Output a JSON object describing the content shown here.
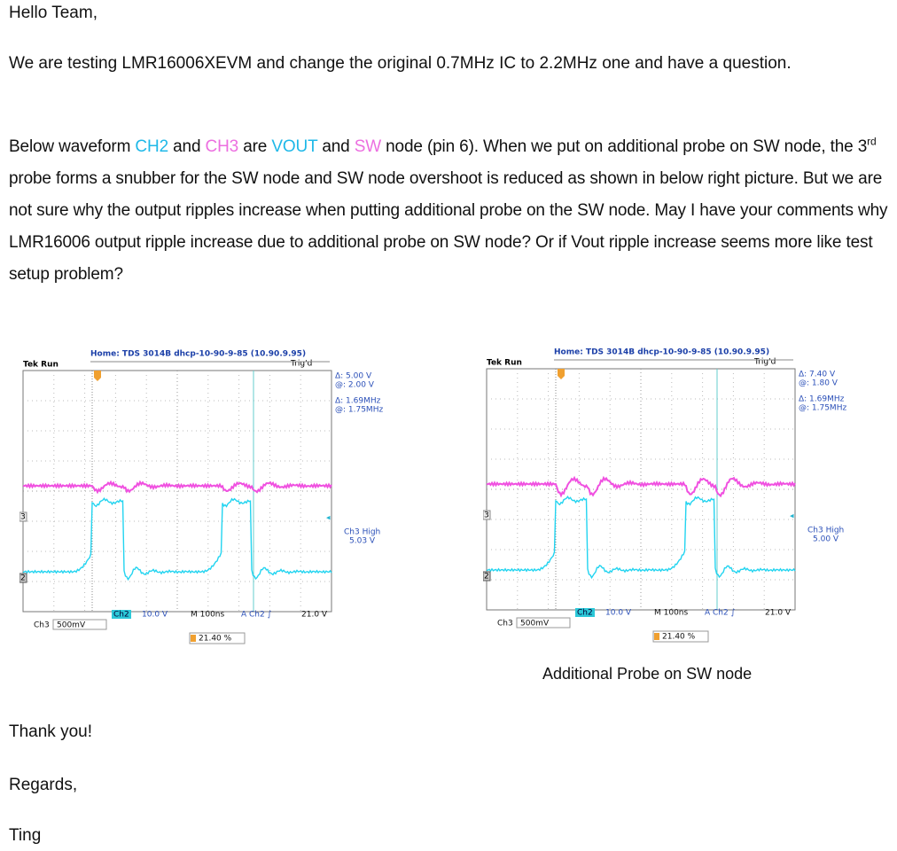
{
  "document": {
    "greeting": "Hello Team,",
    "paragraph1": "We are testing LMR16006XEVM and change the original 0.7MHz IC to 2.2MHz one and have a question.",
    "paragraph2": [
      {
        "text": "Below waveform "
      },
      {
        "text": "CH2",
        "color": "#1fb8e8"
      },
      {
        "text": " and "
      },
      {
        "text": "CH3",
        "color": "#ec6fe0"
      },
      {
        "text": " are "
      },
      {
        "text": "VOUT",
        "color": "#1fb8e8"
      },
      {
        "text": " and "
      },
      {
        "text": "SW",
        "color": "#ec6fe0"
      },
      {
        "text": " node (pin 6). When we put on additional probe on SW node, the 3"
      },
      {
        "text": "rd",
        "style": "sup"
      },
      {
        "text": " probe forms a snubber for the SW node and SW node overshoot is reduced as shown in below right picture. But we are not sure why the output ripples increase when putting additional probe on the SW node. May I have your comments why LMR16006 output ripple increase due to additional probe on SW node? Or if Vout ripple increase seems more like test setup problem?"
      }
    ],
    "scopes": [
      {
        "header": "Home: TDS 3014B dhcp-10-90-9-85 (10.90.9.95)",
        "status": "Tek Run",
        "trigger_state": "Trig'd",
        "cursor_delta": "Δ:  5.00 V",
        "cursor_at": "@:  2.00 V",
        "freq_delta": "Δ: 1.69MHz",
        "freq_at": "@: 1.75MHz",
        "ch3_high_label": "Ch3 High",
        "ch3_high_value": "5.03 V",
        "ch2_name": "Ch2",
        "ch2_scale": "10.0 V",
        "timebase": "M 100ns",
        "trigger": "A  Ch2  ∫",
        "trigger_level": "21.0 V",
        "ch3_name": "Ch3",
        "ch3_scale": "500mV",
        "trigger_position": "21.40 %",
        "ch3_marker": "3",
        "ch2_marker": "2"
      },
      {
        "header": "Home: TDS 3014B dhcp-10-90-9-85 (10.90.9.95)",
        "status": "Tek Run",
        "trigger_state": "Trig'd",
        "cursor_delta": "Δ:  7.40 V",
        "cursor_at": "@:  1.80 V",
        "freq_delta": "Δ: 1.69MHz",
        "freq_at": "@: 1.75MHz",
        "ch3_high_label": "Ch3 High",
        "ch3_high_value": "5.00 V",
        "ch2_name": "Ch2",
        "ch2_scale": "10.0 V",
        "timebase": "M 100ns",
        "trigger": "A  Ch2  ∫",
        "trigger_level": "21.0 V",
        "ch3_name": "Ch3",
        "ch3_scale": "500mV",
        "trigger_position": "21.40 %",
        "ch3_marker": "3",
        "ch2_marker": "2",
        "caption": "Additional Probe on SW node"
      }
    ],
    "closing1": "Thank you!",
    "closing2": "Regards,",
    "signature": "Ting"
  }
}
